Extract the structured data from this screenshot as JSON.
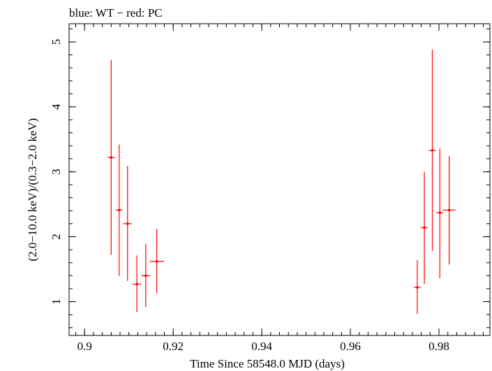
{
  "chart_data": {
    "type": "scatter",
    "title": "blue: WT − red: PC",
    "xlabel": "Time Since 58548.0 MJD (days)",
    "ylabel": "(2.0−10.0 keV)/(0.3−2.0 keV)",
    "xlim": [
      0.8965,
      0.9915
    ],
    "ylim": [
      0.48,
      5.28
    ],
    "x_ticks": [
      {
        "value": 0.9,
        "label": "0.9"
      },
      {
        "value": 0.92,
        "label": "0.92"
      },
      {
        "value": 0.94,
        "label": "0.94"
      },
      {
        "value": 0.96,
        "label": "0.96"
      },
      {
        "value": 0.98,
        "label": "0.98"
      }
    ],
    "x_minor_step": 0.002,
    "y_ticks": [
      {
        "value": 1,
        "label": "1"
      },
      {
        "value": 2,
        "label": "2"
      },
      {
        "value": 3,
        "label": "3"
      },
      {
        "value": 4,
        "label": "4"
      },
      {
        "value": 5,
        "label": "5"
      }
    ],
    "y_minor_step": 0.2,
    "series": [
      {
        "name": "PC",
        "color": "#ff0000",
        "points": [
          {
            "x": 0.906,
            "xerr": 0.0008,
            "y": 3.22,
            "ylo": 1.72,
            "yhi": 4.72
          },
          {
            "x": 0.9078,
            "xerr": 0.0008,
            "y": 2.41,
            "ylo": 1.4,
            "yhi": 3.42
          },
          {
            "x": 0.9097,
            "xerr": 0.001,
            "y": 2.2,
            "ylo": 1.32,
            "yhi": 3.09
          },
          {
            "x": 0.9118,
            "xerr": 0.001,
            "y": 1.27,
            "ylo": 0.84,
            "yhi": 1.71
          },
          {
            "x": 0.9138,
            "xerr": 0.001,
            "y": 1.4,
            "ylo": 0.92,
            "yhi": 1.89
          },
          {
            "x": 0.9163,
            "xerr": 0.0016,
            "y": 1.62,
            "ylo": 1.13,
            "yhi": 2.12
          },
          {
            "x": 0.9751,
            "xerr": 0.0008,
            "y": 1.22,
            "ylo": 0.81,
            "yhi": 1.64
          },
          {
            "x": 0.9767,
            "xerr": 0.0008,
            "y": 2.14,
            "ylo": 1.27,
            "yhi": 3.0
          },
          {
            "x": 0.9785,
            "xerr": 0.0008,
            "y": 3.33,
            "ylo": 1.78,
            "yhi": 4.88
          },
          {
            "x": 0.9802,
            "xerr": 0.0008,
            "y": 2.37,
            "ylo": 1.36,
            "yhi": 3.36
          },
          {
            "x": 0.9823,
            "xerr": 0.0014,
            "y": 2.41,
            "ylo": 1.57,
            "yhi": 3.24
          }
        ]
      }
    ],
    "grid": false
  }
}
